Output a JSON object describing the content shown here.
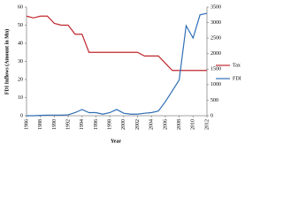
{
  "chart_data": {
    "type": "line",
    "y_label": "FDI Inflows (Amount in Mn)",
    "x_label": "Year",
    "x": [
      1986,
      1987,
      1988,
      1989,
      1990,
      1991,
      1992,
      1993,
      1994,
      1995,
      1996,
      1997,
      1998,
      1999,
      2000,
      2001,
      2002,
      2003,
      2004,
      2005,
      2006,
      2007,
      2008,
      2009,
      2010,
      2011,
      2012
    ],
    "xlim": [
      1986,
      2012
    ],
    "xticks": [
      1986,
      1988,
      1990,
      1992,
      1994,
      1996,
      1998,
      2000,
      2002,
      2004,
      2006,
      2008,
      2010,
      2012
    ],
    "ylim": [
      0,
      60
    ],
    "yticks": [
      0,
      10,
      20,
      30,
      40,
      50,
      60
    ],
    "y2lim": [
      0,
      3500
    ],
    "y2ticks": [
      0,
      500,
      1000,
      1500,
      2000,
      2500,
      3000,
      3500
    ],
    "legend": "right",
    "series": [
      {
        "name": "Tax",
        "color": "#c0272d",
        "values": [
          55,
          54,
          55,
          55,
          51,
          50,
          50,
          45,
          45,
          35,
          35,
          35,
          35,
          35,
          35,
          35,
          35,
          33,
          33,
          33,
          29,
          25,
          25,
          25,
          25,
          25,
          25
        ]
      },
      {
        "name": "FDI",
        "color": "#2f6eb5",
        "axis": "y2",
        "values": [
          0,
          0,
          10,
          20,
          20,
          20,
          30,
          100,
          200,
          100,
          100,
          50,
          100,
          200,
          80,
          50,
          50,
          80,
          100,
          150,
          450,
          800,
          1150,
          2900,
          2500,
          3250,
          3300
        ]
      }
    ]
  }
}
